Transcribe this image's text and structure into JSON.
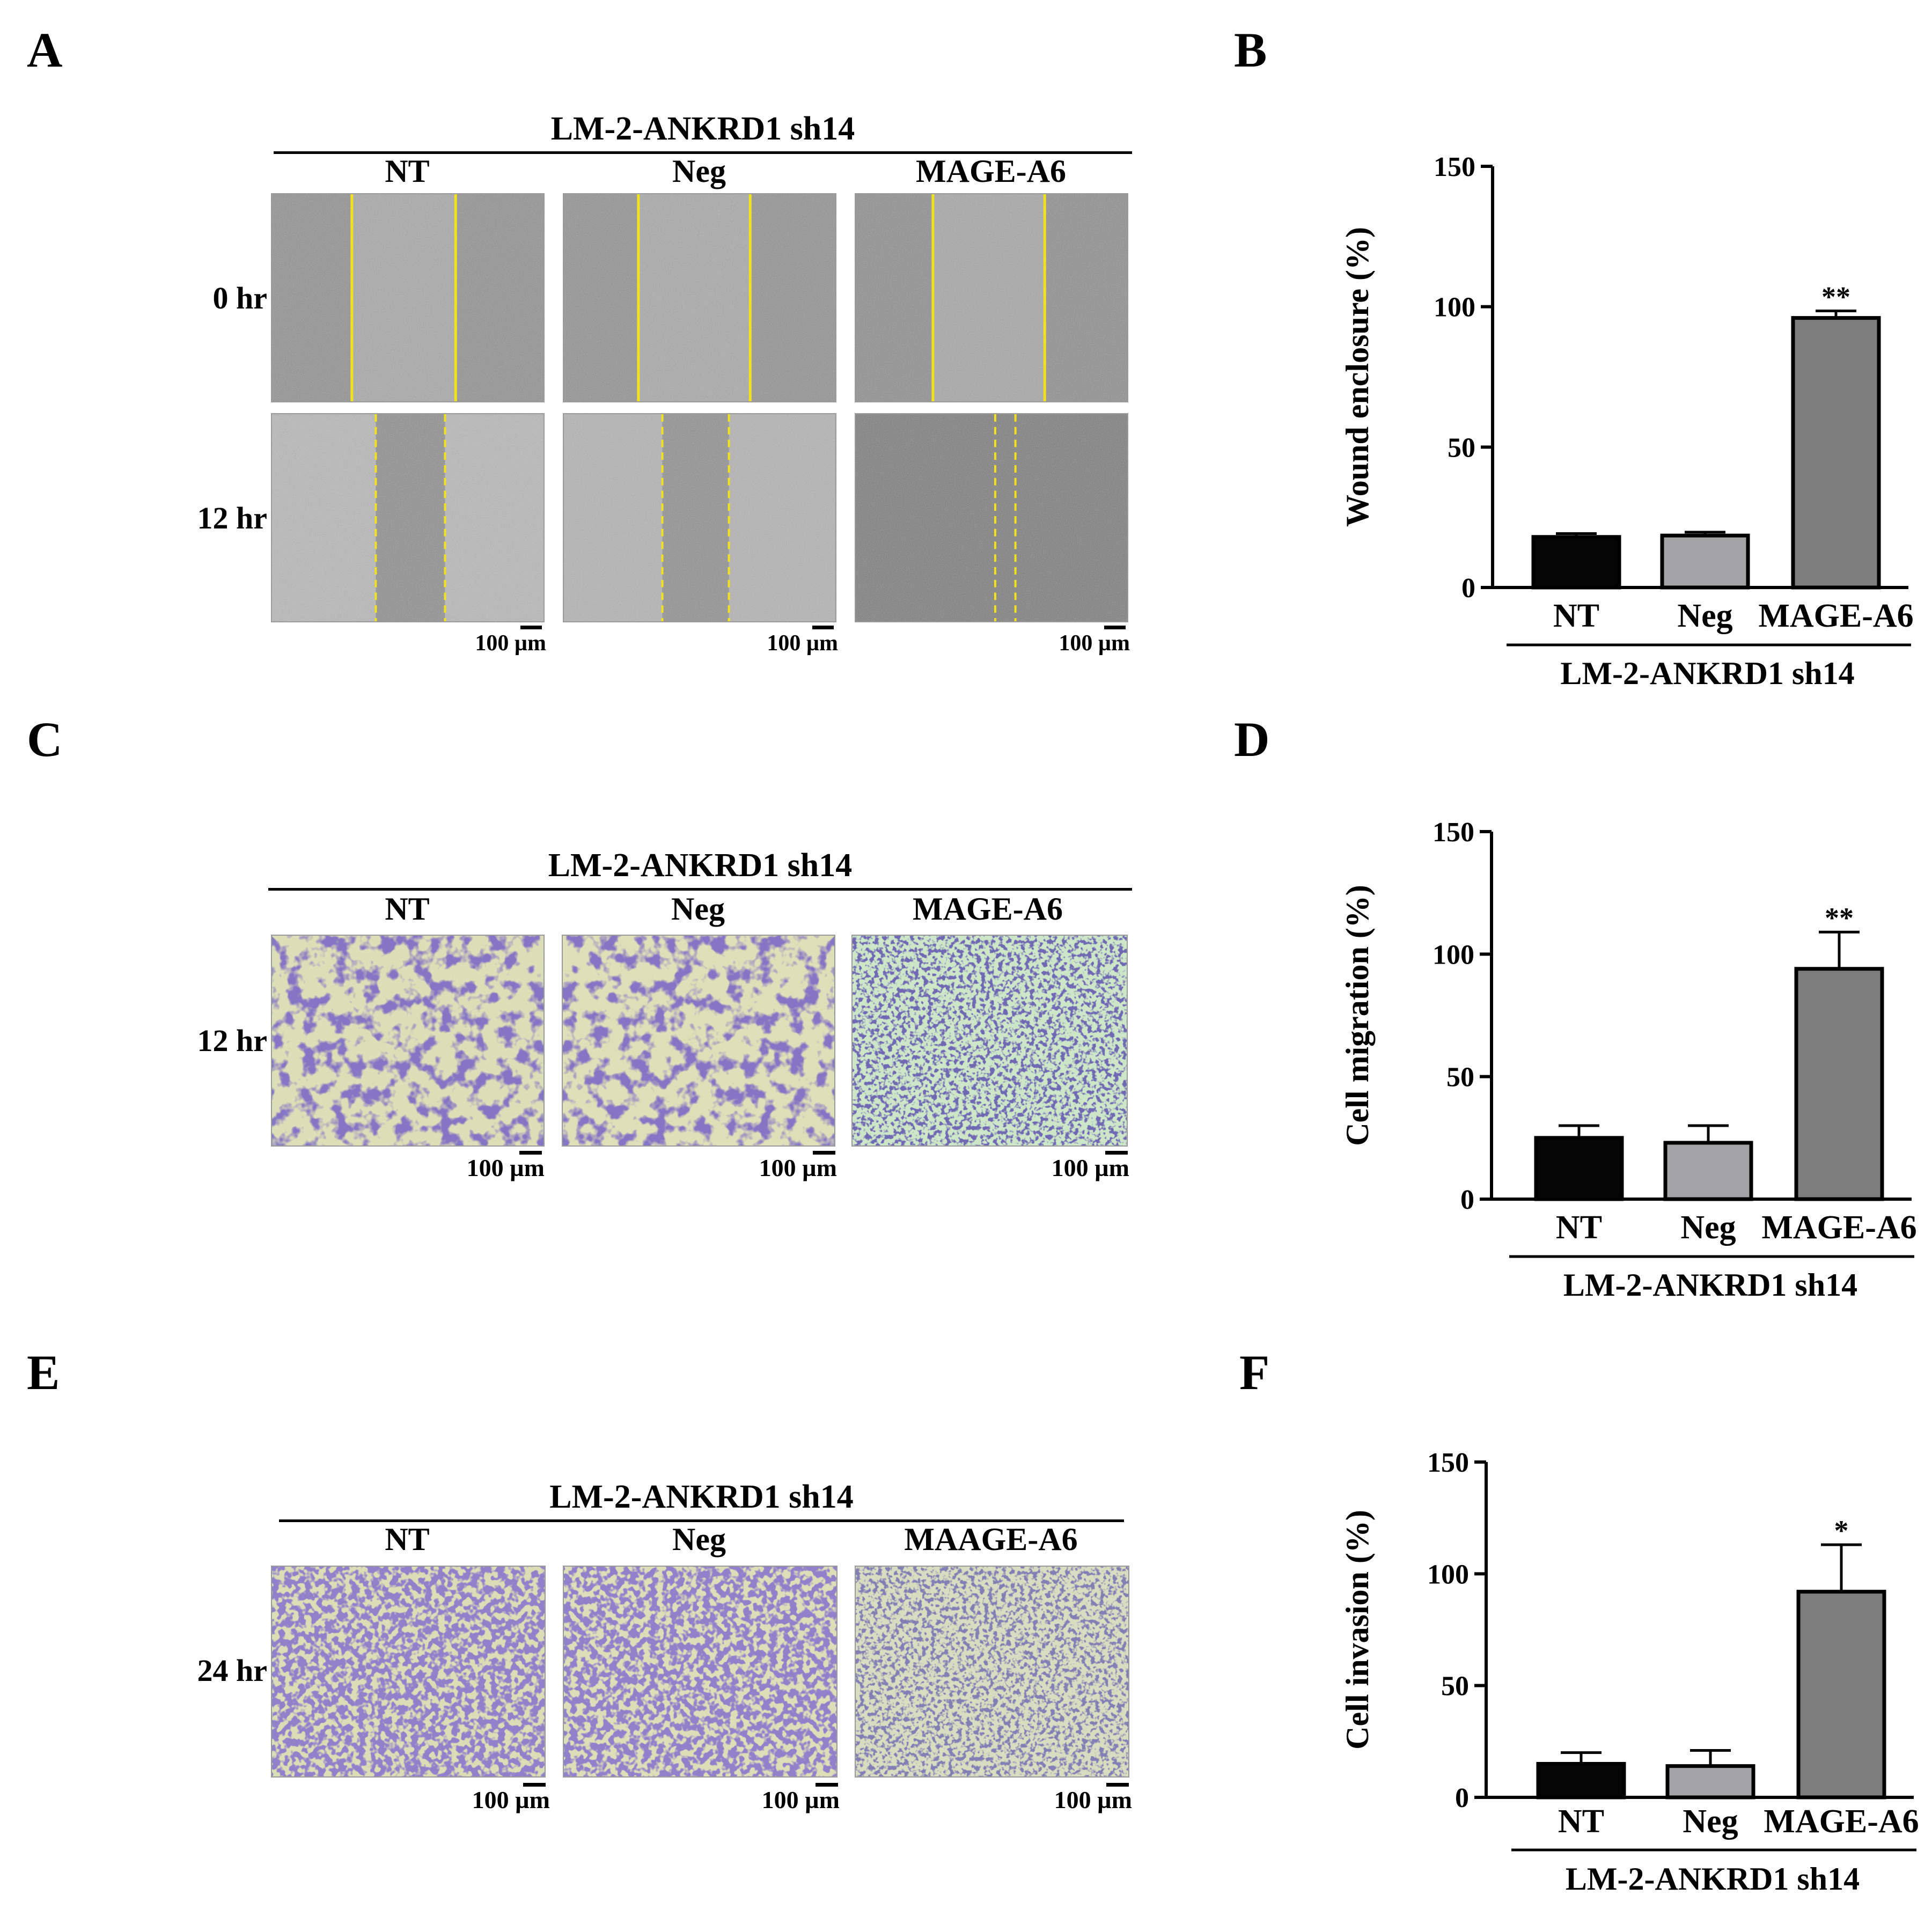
{
  "figure": {
    "panels": {
      "A": {
        "label": "A",
        "group_title": "LM-2-ANKRD1 sh14",
        "columns": [
          "NT",
          "Neg",
          "MAGE-A6"
        ],
        "rows": [
          "0 hr",
          "12 hr"
        ],
        "scale_label": "100 µm"
      },
      "B": {
        "label": "B"
      },
      "C": {
        "label": "C",
        "group_title": "LM-2-ANKRD1 sh14",
        "columns": [
          "NT",
          "Neg",
          "MAGE-A6"
        ],
        "rows": [
          "12 hr"
        ],
        "scale_label": "100 µm"
      },
      "D": {
        "label": "D"
      },
      "E": {
        "label": "E",
        "group_title": "LM-2-ANKRD1 sh14",
        "columns": [
          "NT",
          "Neg",
          "MAAGE-A6"
        ],
        "rows": [
          "24 hr"
        ],
        "scale_label": "100 µm"
      },
      "F": {
        "label": "F"
      }
    }
  },
  "chart_data": [
    {
      "panel": "B",
      "type": "bar",
      "ylabel": "Wound enclosure (%)",
      "xlabel": "LM-2-ANKRD1 sh14",
      "categories": [
        "NT",
        "Neg",
        "MAGE-A6"
      ],
      "values": [
        18,
        18.5,
        96
      ],
      "errors": [
        1.2,
        1.2,
        2.5
      ],
      "significance": [
        "",
        "",
        "**"
      ],
      "colors": [
        "#050505",
        "#a3a3a5",
        "#7d7d7d"
      ],
      "ylim": [
        0,
        150
      ],
      "yticks": [
        0,
        50,
        100,
        150
      ]
    },
    {
      "panel": "D",
      "type": "bar",
      "ylabel": "Cell migration (%)",
      "xlabel": "LM-2-ANKRD1 sh14",
      "categories": [
        "NT",
        "Neg",
        "MAGE-A6"
      ],
      "values": [
        25,
        23,
        94
      ],
      "errors": [
        5,
        7,
        15
      ],
      "significance": [
        "",
        "",
        "**"
      ],
      "colors": [
        "#050505",
        "#a3a3a5",
        "#7d7d7d"
      ],
      "ylim": [
        0,
        150
      ],
      "yticks": [
        0,
        50,
        100,
        150
      ]
    },
    {
      "panel": "F",
      "type": "bar",
      "ylabel": "Cell invasion (%)",
      "xlabel": "LM-2-ANKRD1 sh14",
      "categories": [
        "NT",
        "Neg",
        "MAGE-A6"
      ],
      "values": [
        15,
        14,
        92
      ],
      "errors": [
        5,
        7,
        21
      ],
      "significance": [
        "",
        "",
        "*"
      ],
      "colors": [
        "#050505",
        "#a3a3a5",
        "#7d7d7d"
      ],
      "ylim": [
        0,
        150
      ],
      "yticks": [
        0,
        50,
        100,
        150
      ]
    }
  ]
}
